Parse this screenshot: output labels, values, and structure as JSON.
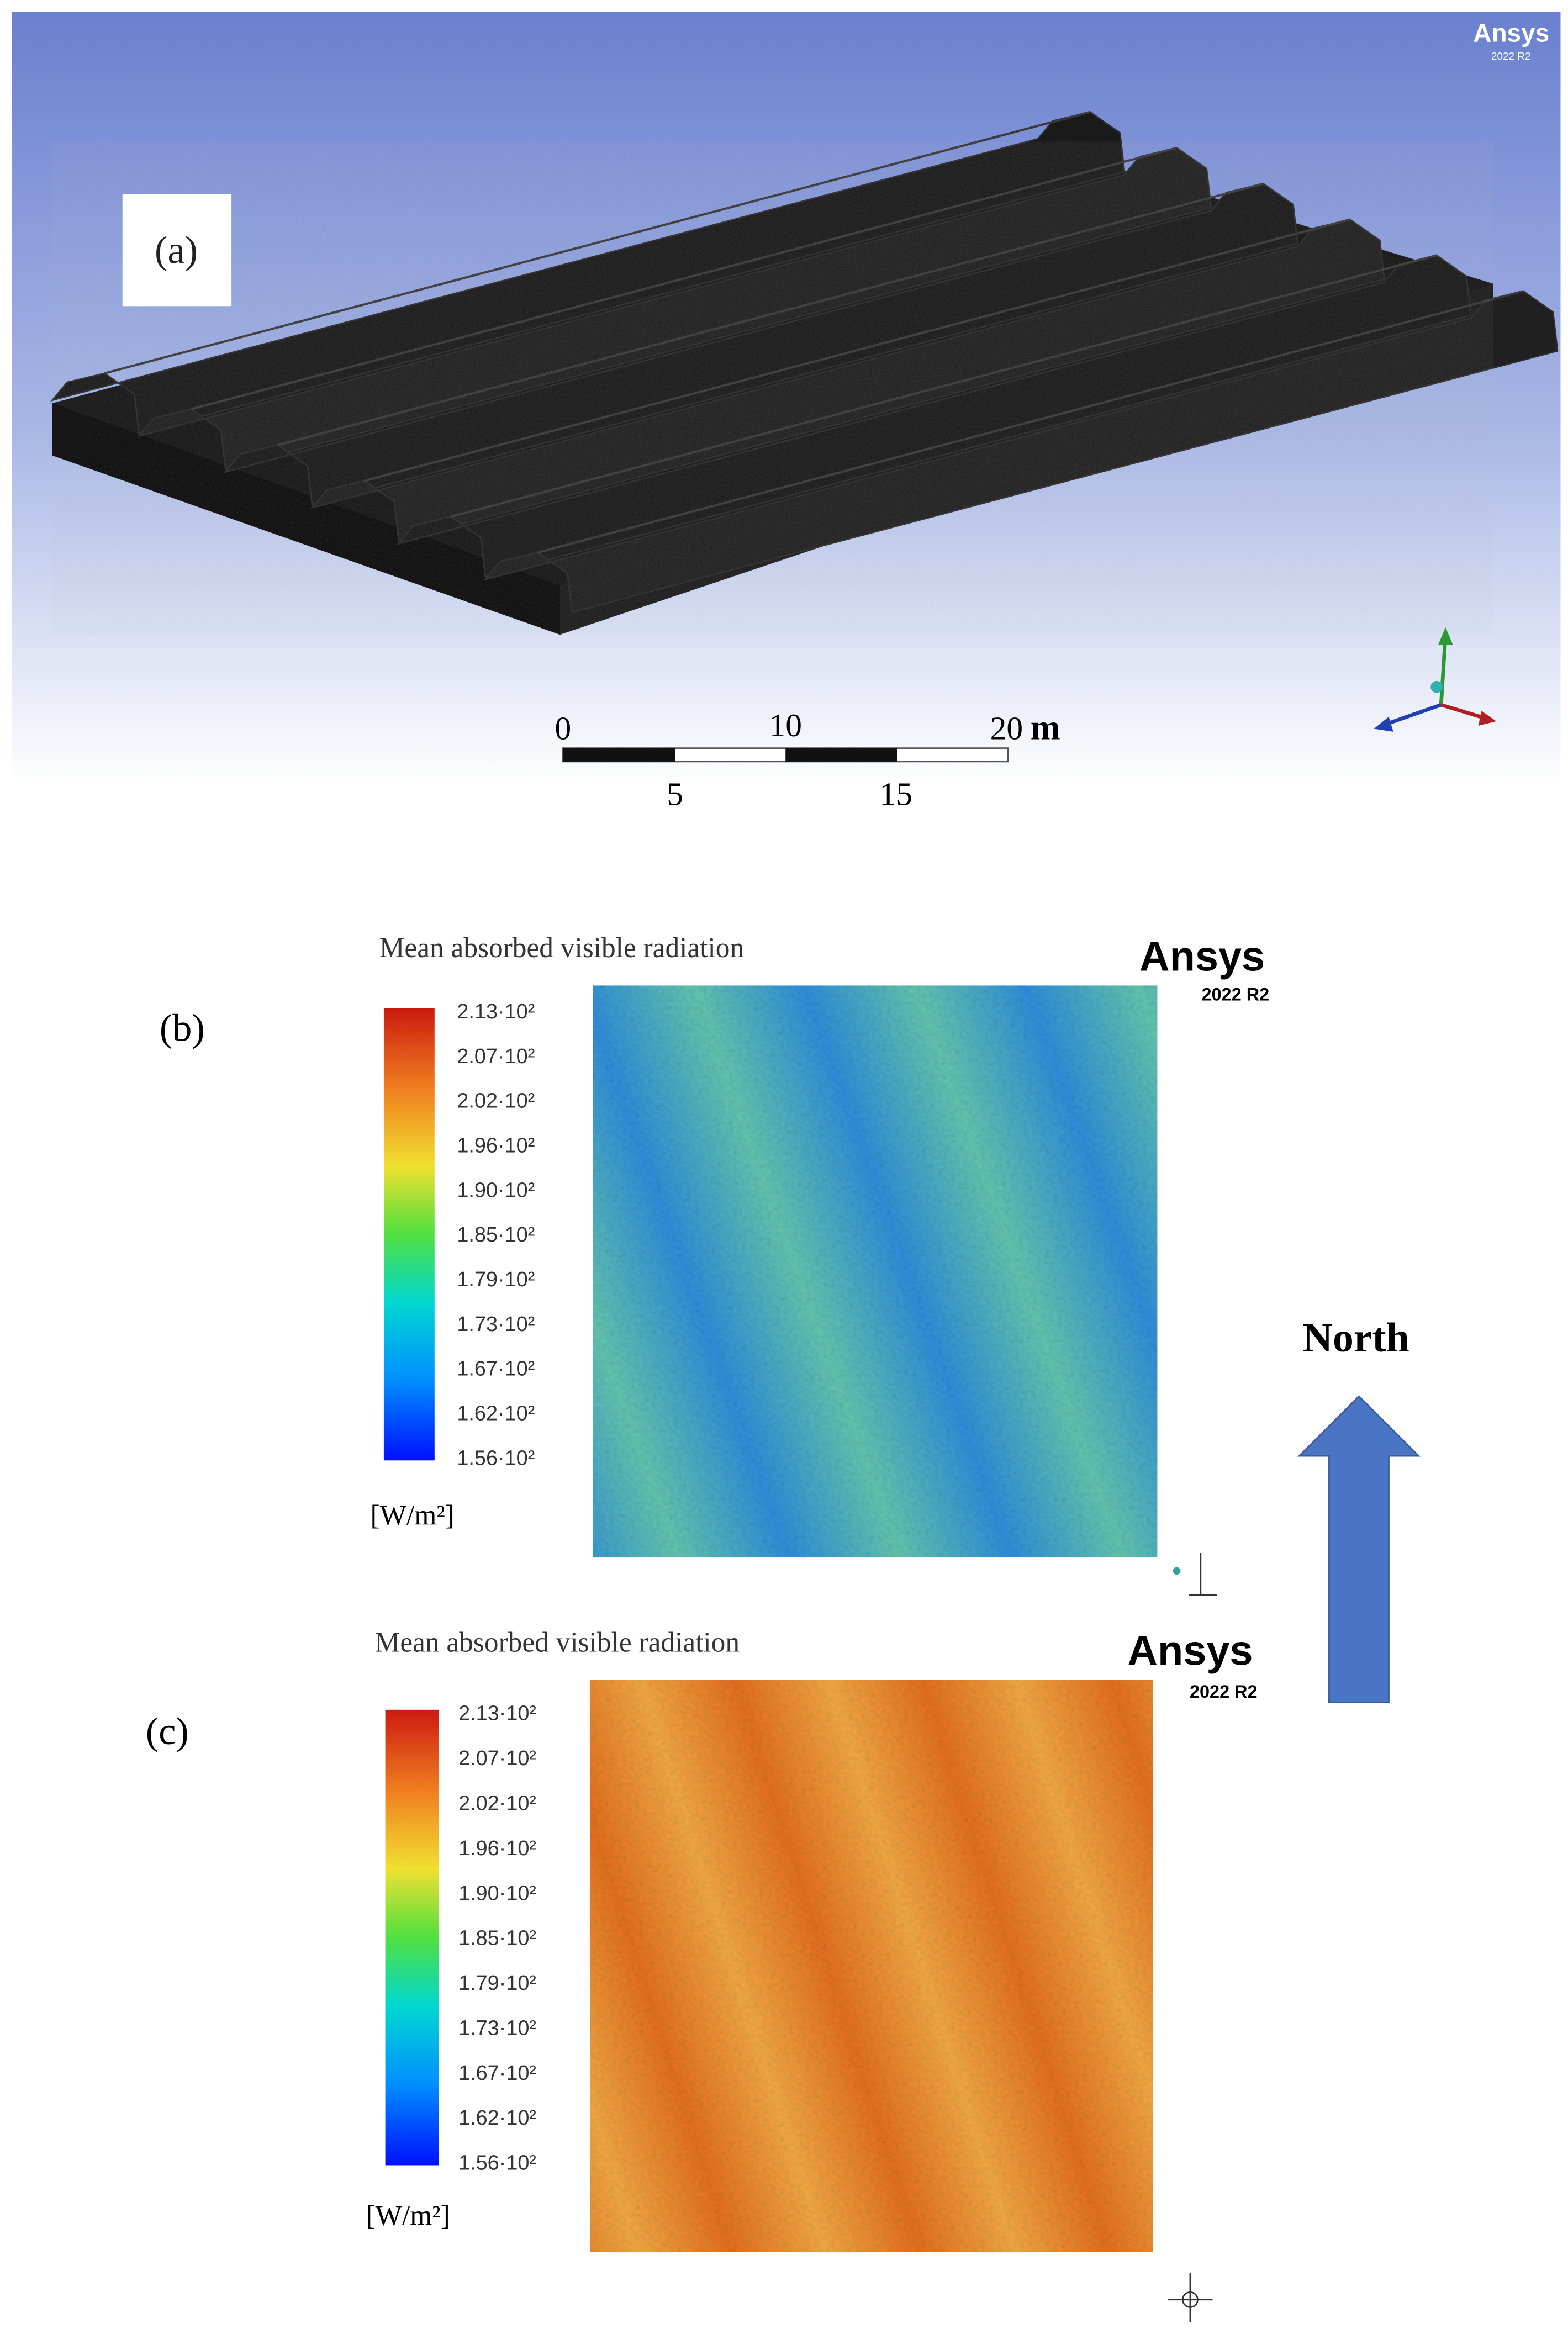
{
  "panels": [
    {
      "label": "(a)",
      "logo": "Ansys",
      "logo_version": "2022 R2",
      "scale_bar": {
        "top": [
          0,
          10,
          20
        ],
        "bottom": [
          5,
          15
        ],
        "unit": "m"
      }
    },
    {
      "label": "(b)",
      "title": "Mean absorbed visible radiation",
      "logo": "Ansys",
      "logo_version": "2022 R2",
      "colorbar": {
        "labels": [
          "2.13·10²",
          "2.07·10²",
          "2.02·10²",
          "1.96·10²",
          "1.90·10²",
          "1.85·10²",
          "1.79·10²",
          "1.73·10²",
          "1.67·10²",
          "1.62·10²",
          "1.56·10²"
        ],
        "unit": "[W/m²]"
      }
    },
    {
      "label": "(c)",
      "title": "Mean absorbed visible radiation",
      "logo": "Ansys",
      "logo_version": "2022 R2",
      "colorbar": {
        "labels": [
          "2.13·10²",
          "2.07·10²",
          "2.02·10²",
          "1.96·10²",
          "1.90·10²",
          "1.85·10²",
          "1.79·10²",
          "1.73·10²",
          "1.67·10²",
          "1.62·10²",
          "1.56·10²"
        ],
        "unit": "[W/m²]"
      }
    }
  ],
  "north": "North"
}
